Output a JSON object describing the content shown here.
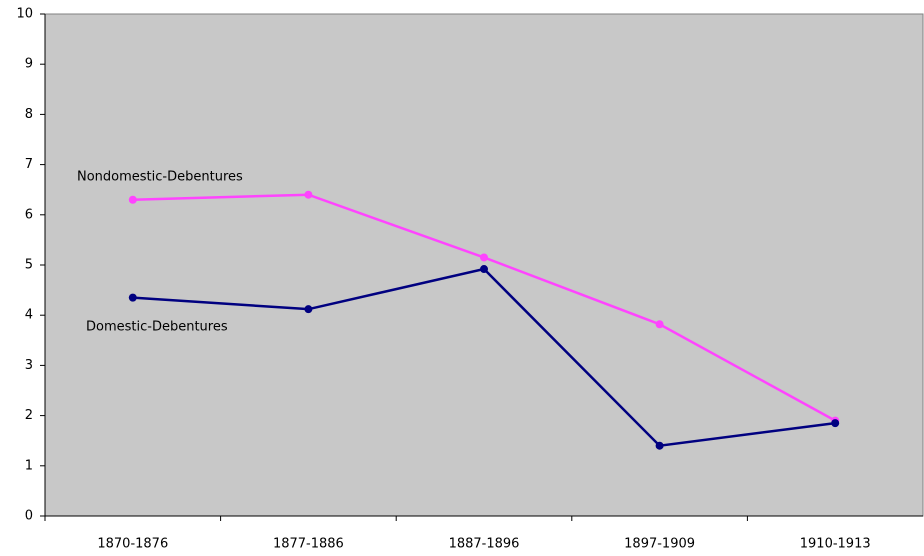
{
  "chart_data": {
    "type": "line",
    "categories": [
      "1870-1876",
      "1877-1886",
      "1887-1896",
      "1897-1909",
      "1910-1913"
    ],
    "series": [
      {
        "name": "Nondomestic-Debentures",
        "color": "#ff44ff",
        "values": [
          6.3,
          6.4,
          5.15,
          3.82,
          1.9
        ]
      },
      {
        "name": "Domestic-Debentures",
        "color": "#000080",
        "values": [
          4.35,
          4.12,
          4.92,
          1.4,
          1.85
        ]
      }
    ],
    "ylim": [
      0,
      10
    ],
    "yticks": [
      0,
      1,
      2,
      3,
      4,
      5,
      6,
      7,
      8,
      9,
      10
    ],
    "plot_background": "#c8c8c8"
  }
}
